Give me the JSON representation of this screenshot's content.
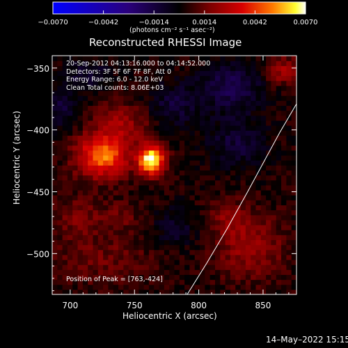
{
  "chart_data": {
    "type": "heatmap",
    "title": "Reconstructed RHESSI Image",
    "xlabel": "Heliocentric X (arcsec)",
    "ylabel": "Heliocentric Y (arcsec)",
    "xlim": [
      686,
      876
    ],
    "ylim": [
      -533,
      -340
    ],
    "xticks": [
      700,
      750,
      800,
      850
    ],
    "yticks": [
      -350,
      -400,
      -450,
      -500
    ],
    "xtick_labels": [
      "700",
      "750",
      "800",
      "850"
    ],
    "ytick_labels": [
      "−350",
      "−400",
      "−450",
      "−500"
    ],
    "colorbar": {
      "range": [
        -0.007,
        0.007
      ],
      "ticks": [
        -0.007,
        -0.0042,
        -0.0014,
        0.0014,
        0.0042,
        0.007
      ],
      "tick_labels": [
        "−0.0070",
        "−0.0042",
        "−0.0014",
        "0.0014",
        "0.0042",
        "0.0070"
      ],
      "units": "(photons cm⁻² s⁻¹ asec⁻²)"
    },
    "annotations": [
      "20-Sep-2012 04:13:16.000 to 04:14:52.000",
      "Detectors: 3F 5F 6F 7F 8F, Att 0",
      "Energy Range: 6.0 - 12.0 keV",
      "Clean     Total counts: 8.06E+03"
    ],
    "peak_label": "Position of Peak = [763,-424]",
    "peak": [
      763,
      -424
    ],
    "limb": [
      [
        791,
        -533
      ],
      [
        806,
        -508
      ],
      [
        822,
        -480
      ],
      [
        838,
        -450
      ],
      [
        851,
        -425
      ],
      [
        863,
        -402
      ],
      [
        876,
        -379
      ]
    ],
    "sources": [
      {
        "x": 763,
        "y": -424,
        "amp": 0.0068,
        "sx": 7,
        "sy": 8
      },
      {
        "x": 725,
        "y": -421,
        "amp": 0.0046,
        "sx": 14,
        "sy": 12
      },
      {
        "x": 740,
        "y": -395,
        "amp": 0.0018,
        "sx": 15,
        "sy": 12
      },
      {
        "x": 705,
        "y": -470,
        "amp": 0.0012,
        "sx": 14,
        "sy": 12
      },
      {
        "x": 740,
        "y": -470,
        "amp": 0.0008,
        "sx": 14,
        "sy": 10
      },
      {
        "x": 725,
        "y": -505,
        "amp": 0.001,
        "sx": 28,
        "sy": 14
      },
      {
        "x": 840,
        "y": -495,
        "amp": 0.0018,
        "sx": 18,
        "sy": 18
      },
      {
        "x": 823,
        "y": -470,
        "amp": 0.0012,
        "sx": 10,
        "sy": 10
      },
      {
        "x": 865,
        "y": -352,
        "amp": 0.002,
        "sx": 9,
        "sy": 8
      },
      {
        "x": 780,
        "y": -380,
        "amp": -0.0015,
        "sx": 14,
        "sy": 12
      },
      {
        "x": 825,
        "y": -365,
        "amp": -0.002,
        "sx": 18,
        "sy": 14
      },
      {
        "x": 830,
        "y": -410,
        "amp": -0.0015,
        "sx": 16,
        "sy": 14
      },
      {
        "x": 693,
        "y": -383,
        "amp": -0.0015,
        "sx": 10,
        "sy": 12
      },
      {
        "x": 782,
        "y": -478,
        "amp": -0.0012,
        "sx": 12,
        "sy": 12
      },
      {
        "x": 712,
        "y": -355,
        "amp": -0.0012,
        "sx": 14,
        "sy": 8
      }
    ]
  },
  "footer": {
    "date": "14–May–2022 15:15"
  }
}
